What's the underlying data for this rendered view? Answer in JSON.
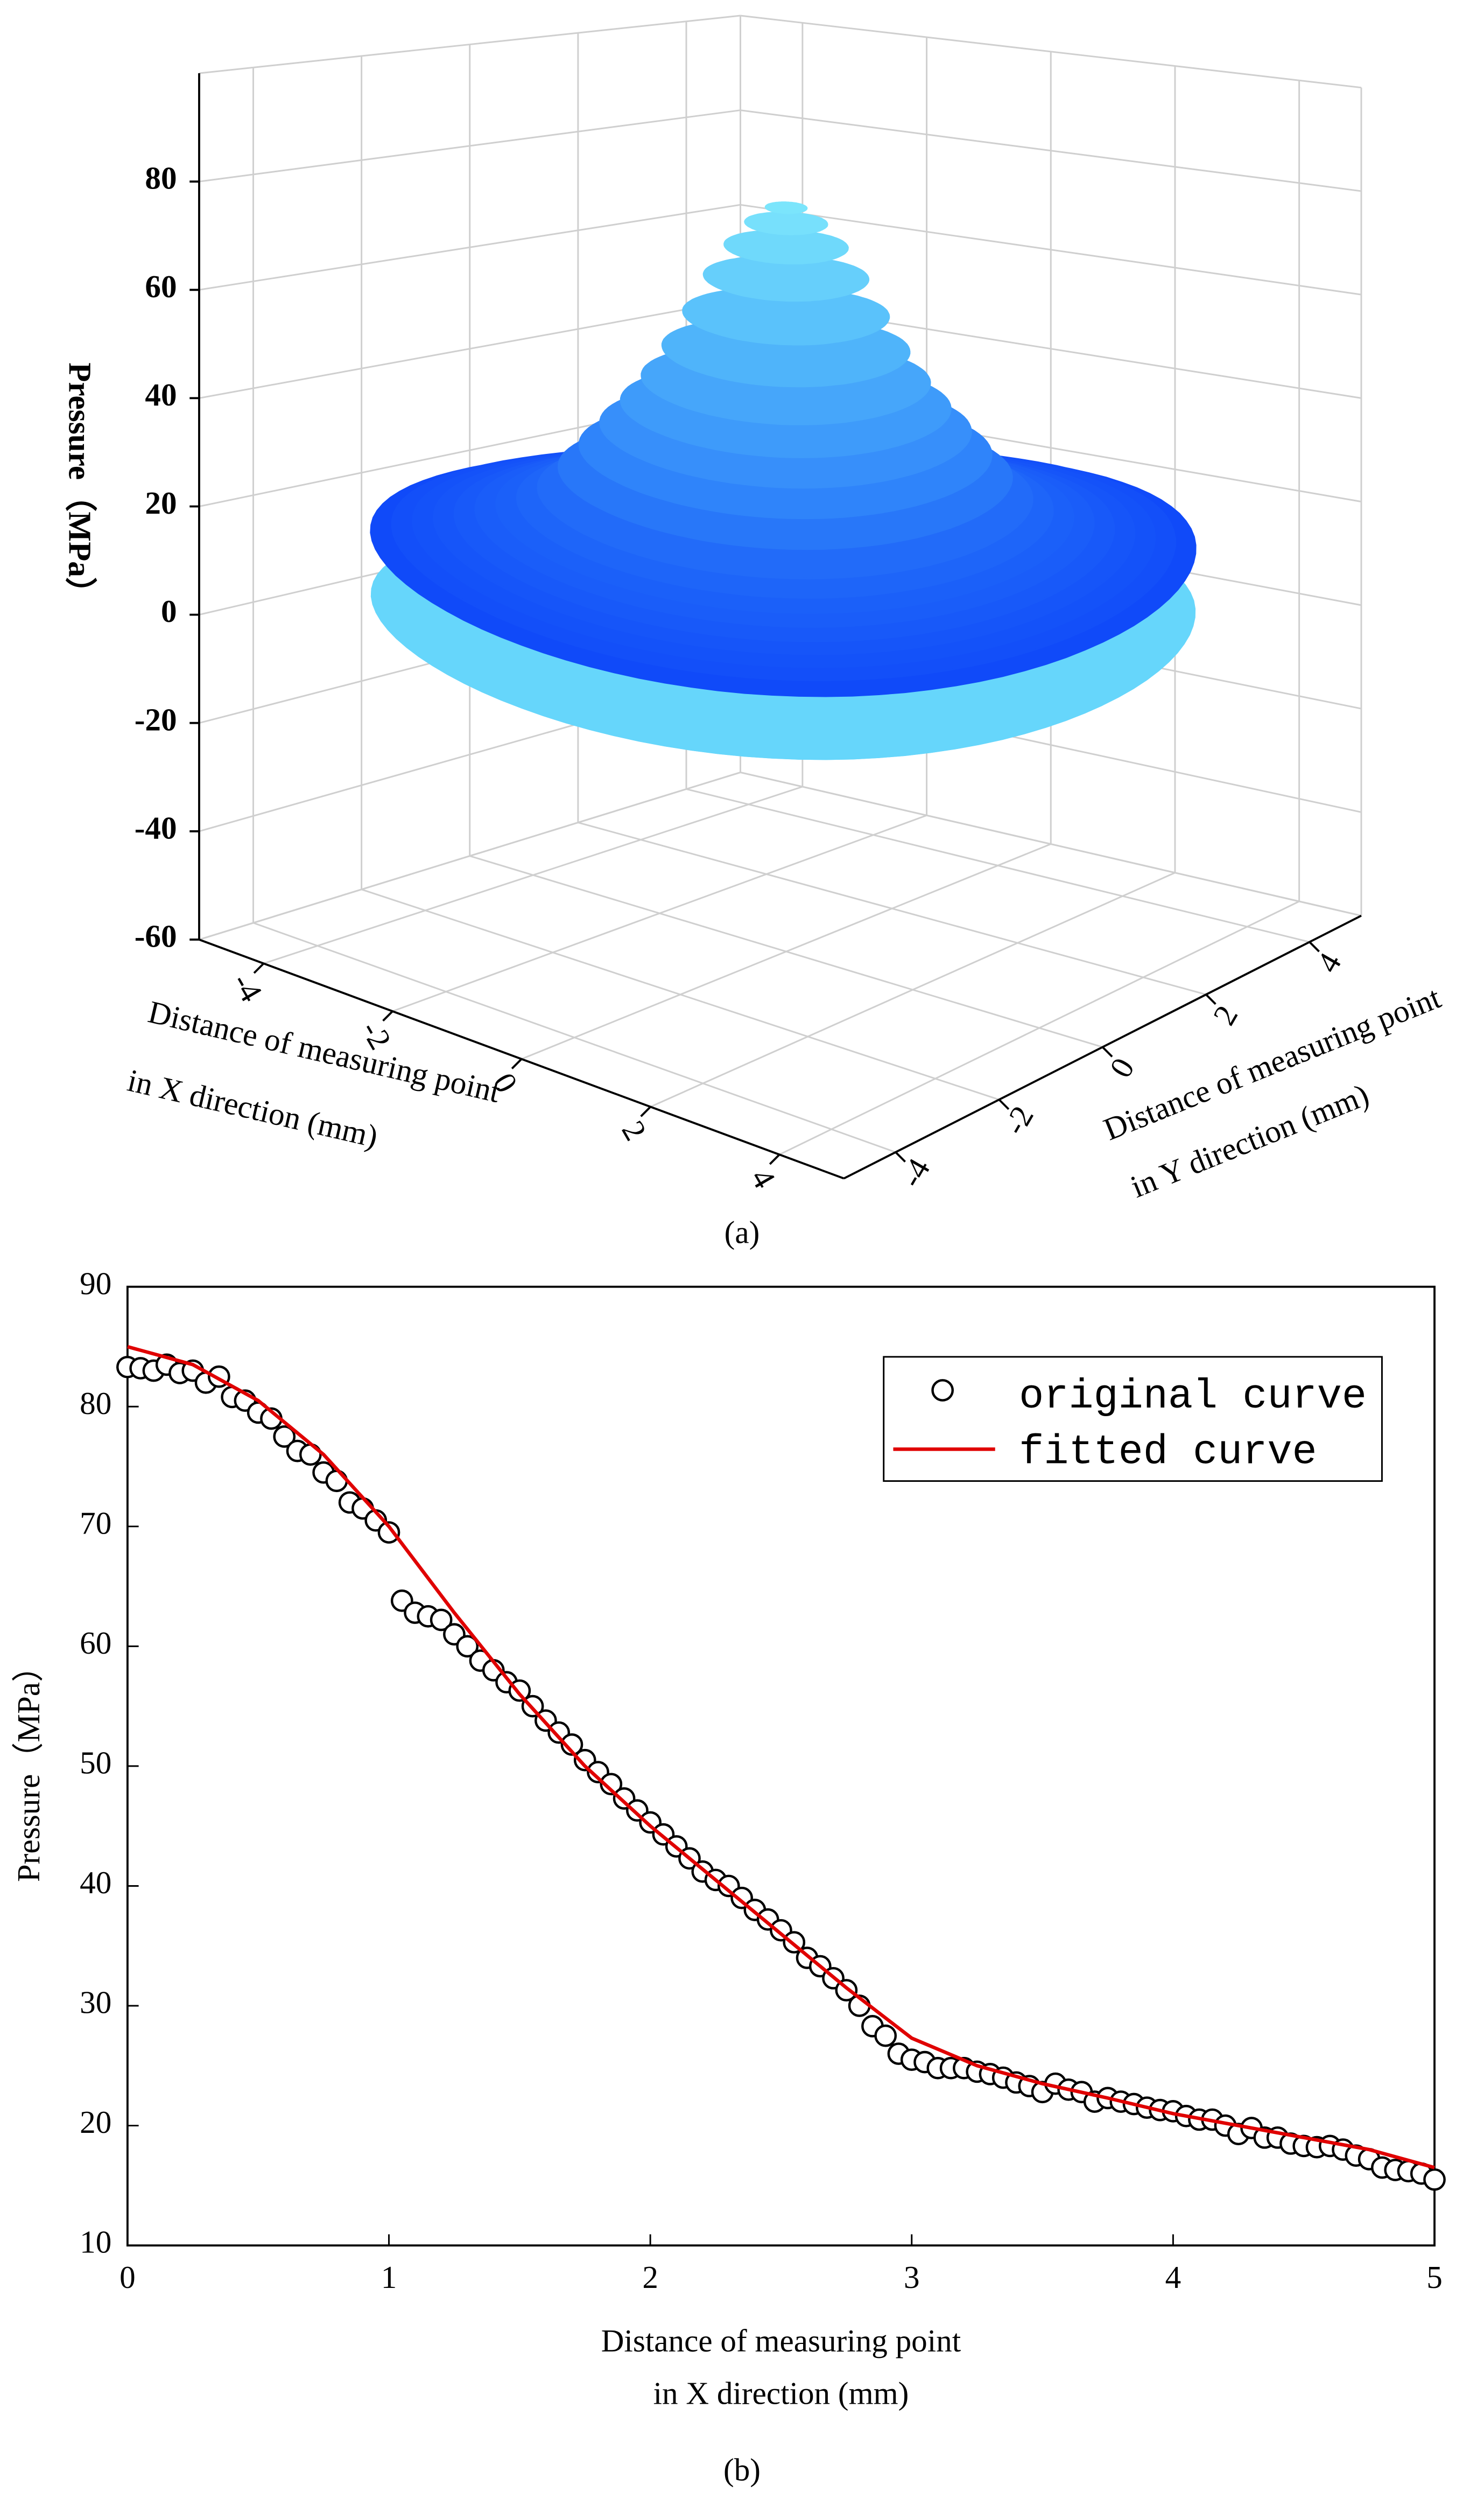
{
  "chart_data": [
    {
      "type": "surface",
      "caption": "(a)",
      "zlabel": "Pressure（MPa）",
      "xlabel": [
        "Distance of measuring point",
        "in X direction (mm)"
      ],
      "ylabel": [
        "Distance of measuring point",
        "in Y direction (mm)"
      ],
      "zlim": [
        -60,
        100
      ],
      "zticks": [
        -60,
        -40,
        -20,
        0,
        20,
        40,
        60,
        80
      ],
      "xlim": [
        -5,
        5
      ],
      "xticks": [
        -4,
        -2,
        0,
        2,
        4
      ],
      "ylim": [
        -5,
        5
      ],
      "yticks": [
        -4,
        -2,
        0,
        2,
        4
      ],
      "grid": true
    },
    {
      "type": "scatter",
      "caption": "(b)",
      "xlabel": [
        "Distance of measuring point",
        "in X direction (mm)"
      ],
      "ylabel": "Pressure（MPa）",
      "xlim": [
        0,
        5
      ],
      "xticks": [
        0,
        1,
        2,
        3,
        4,
        5
      ],
      "ylim": [
        10,
        90
      ],
      "yticks": [
        10,
        20,
        30,
        40,
        50,
        60,
        70,
        80,
        90
      ],
      "legend": "upper right",
      "series": [
        {
          "name": "original curve",
          "type": "scatter",
          "color": "#000000",
          "x": [
            0,
            0.05,
            0.1,
            0.15,
            0.2,
            0.25,
            0.3,
            0.35,
            0.4,
            0.45,
            0.5,
            0.55,
            0.6,
            0.65,
            0.7,
            0.75,
            0.8,
            0.85,
            0.9,
            0.95,
            1.0,
            1.05,
            1.1,
            1.15,
            1.2,
            1.25,
            1.3,
            1.35,
            1.4,
            1.45,
            1.5,
            1.55,
            1.6,
            1.65,
            1.7,
            1.75,
            1.8,
            1.85,
            1.9,
            1.95,
            2.0,
            2.05,
            2.1,
            2.15,
            2.2,
            2.25,
            2.3,
            2.35,
            2.4,
            2.45,
            2.5,
            2.55,
            2.6,
            2.65,
            2.7,
            2.75,
            2.8,
            2.85,
            2.9,
            2.95,
            3.0,
            3.05,
            3.1,
            3.15,
            3.2,
            3.25,
            3.3,
            3.35,
            3.4,
            3.45,
            3.5,
            3.55,
            3.6,
            3.65,
            3.7,
            3.75,
            3.8,
            3.85,
            3.9,
            3.95,
            4.0,
            4.05,
            4.1,
            4.15,
            4.2,
            4.25,
            4.3,
            4.35,
            4.4,
            4.45,
            4.5,
            4.55,
            4.6,
            4.65,
            4.7,
            4.75,
            4.8,
            4.85,
            4.9,
            4.95,
            5.0
          ],
          "values": [
            83.3,
            83.2,
            83,
            83.5,
            82.8,
            83,
            82,
            82.5,
            80.8,
            80.5,
            79.5,
            79,
            77.5,
            76.3,
            76,
            74.5,
            73.8,
            72,
            71.5,
            70.5,
            69.5,
            63.8,
            62.8,
            62.5,
            62.2,
            61,
            60,
            58.8,
            58,
            57,
            56.3,
            55,
            53.8,
            52.8,
            51.8,
            50.5,
            49.5,
            48.5,
            47.3,
            46.3,
            45.3,
            44.3,
            43.3,
            42.3,
            41.2,
            40.5,
            40,
            39,
            38,
            37.2,
            36.3,
            35.3,
            34,
            33.3,
            32.3,
            31.3,
            30,
            28.3,
            27.5,
            26,
            25.5,
            25.3,
            24.8,
            24.8,
            24.8,
            24.5,
            24.3,
            24,
            23.6,
            23.3,
            22.8,
            23.5,
            23,
            22.8,
            22,
            22.3,
            22,
            21.8,
            21.5,
            21.3,
            21.2,
            20.8,
            20.5,
            20.5,
            20,
            19.3,
            19.8,
            19,
            19,
            18.5,
            18.3,
            18.2,
            18.3,
            18,
            17.5,
            17.2,
            16.5,
            16.3,
            16.2,
            16,
            15.5
          ]
        },
        {
          "name": "fitted curve",
          "type": "line",
          "color": "#e00000",
          "x": [
            0,
            0.25,
            0.5,
            0.75,
            1.0,
            1.25,
            1.5,
            1.75,
            2.0,
            2.25,
            2.5,
            2.75,
            3.0,
            3.25,
            3.5,
            3.75,
            4.0,
            4.25,
            4.5,
            4.75,
            5.0
          ],
          "values": [
            85,
            83.5,
            80.5,
            76,
            70,
            62.8,
            56,
            50,
            45,
            40.5,
            36,
            31.5,
            27.3,
            25,
            23.5,
            22.3,
            21,
            20,
            19,
            18,
            16.5
          ]
        }
      ]
    }
  ]
}
